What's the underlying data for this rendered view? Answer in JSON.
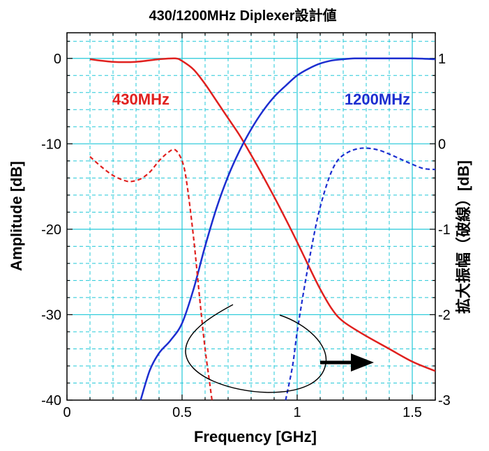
{
  "chart_data": {
    "type": "line",
    "title": "430/1200MHz Diplexer設計値",
    "xlabel": "Frequency [GHz]",
    "ylabel": "Amplitude [dB]",
    "y2label": "拡大振幅（破線）[dB]",
    "xlim": [
      0,
      1.6
    ],
    "ylim": [
      -40,
      3
    ],
    "y2lim": [
      -3,
      1.3
    ],
    "xticks": [
      0,
      0.5,
      1,
      1.5
    ],
    "xtick_labels": [
      "0",
      "0.5",
      "1",
      "1.5"
    ],
    "yticks": [
      -40,
      -30,
      -20,
      -10,
      0
    ],
    "ytick_labels": [
      "-40",
      "-30",
      "-20",
      "-10",
      "0"
    ],
    "y2ticks": [
      -3,
      -2,
      -1,
      0,
      1
    ],
    "y2tick_labels": [
      "-3",
      "-2",
      "-1",
      "0",
      "1"
    ],
    "grid": true,
    "series_labels": [
      {
        "text": "430MHz",
        "color": "#e0201e"
      },
      {
        "text": "1200MHz",
        "color": "#1c2ed0"
      }
    ],
    "series": [
      {
        "name": "430MHz",
        "axis": "left",
        "style": "solid",
        "color": "#e0201e",
        "x": [
          0.1,
          0.2,
          0.3,
          0.4,
          0.47,
          0.5,
          0.55,
          0.6,
          0.65,
          0.7,
          0.75,
          0.8,
          0.85,
          0.9,
          0.95,
          1.0,
          1.05,
          1.1,
          1.15,
          1.2,
          1.3,
          1.4,
          1.5,
          1.6
        ],
        "values": [
          -0.1,
          -0.4,
          -0.4,
          -0.1,
          0.0,
          -0.3,
          -1.3,
          -3.0,
          -5.0,
          -7.0,
          -9.0,
          -11.3,
          -13.7,
          -16.2,
          -18.8,
          -21.5,
          -24.3,
          -27.0,
          -29.3,
          -30.8,
          -32.5,
          -34.0,
          -35.5,
          -36.6
        ]
      },
      {
        "name": "1200MHz",
        "axis": "left",
        "style": "solid",
        "color": "#1c2ed0",
        "x": [
          0.32,
          0.36,
          0.4,
          0.45,
          0.5,
          0.55,
          0.6,
          0.65,
          0.7,
          0.75,
          0.8,
          0.85,
          0.9,
          0.95,
          1.0,
          1.05,
          1.1,
          1.15,
          1.2,
          1.25,
          1.3,
          1.4,
          1.5,
          1.6
        ],
        "values": [
          -40.0,
          -36.5,
          -34.5,
          -33.0,
          -31.0,
          -27.0,
          -22.0,
          -17.5,
          -13.8,
          -10.8,
          -8.3,
          -6.2,
          -4.5,
          -3.2,
          -2.0,
          -1.2,
          -0.6,
          -0.25,
          -0.1,
          0.0,
          0.0,
          0.0,
          0.0,
          -0.1
        ]
      },
      {
        "name": "430MHz (expanded)",
        "axis": "right",
        "style": "dashed",
        "color": "#e0201e",
        "x": [
          0.1,
          0.15,
          0.2,
          0.25,
          0.28,
          0.32,
          0.36,
          0.4,
          0.44,
          0.47,
          0.5,
          0.52,
          0.55,
          0.58,
          0.6,
          0.62,
          0.63
        ],
        "values": [
          -0.15,
          -0.27,
          -0.37,
          -0.43,
          -0.44,
          -0.41,
          -0.33,
          -0.2,
          -0.1,
          -0.07,
          -0.2,
          -0.45,
          -1.1,
          -1.9,
          -2.4,
          -2.8,
          -3.0
        ]
      },
      {
        "name": "1200MHz (expanded)",
        "axis": "right",
        "style": "dashed",
        "color": "#1c2ed0",
        "x": [
          0.95,
          0.98,
          1.0,
          1.03,
          1.06,
          1.09,
          1.12,
          1.15,
          1.18,
          1.22,
          1.26,
          1.3,
          1.35,
          1.4,
          1.45,
          1.5,
          1.55,
          1.6
        ],
        "values": [
          -3.0,
          -2.6,
          -2.2,
          -1.7,
          -1.25,
          -0.85,
          -0.55,
          -0.32,
          -0.18,
          -0.1,
          -0.06,
          -0.05,
          -0.07,
          -0.12,
          -0.18,
          -0.24,
          -0.29,
          -0.3
        ]
      }
    ]
  }
}
